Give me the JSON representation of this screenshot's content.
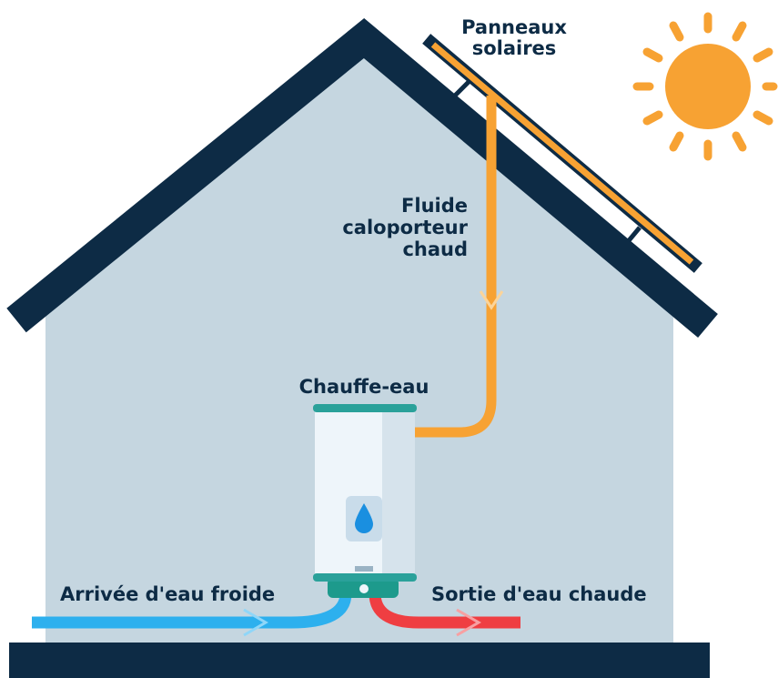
{
  "labels": {
    "panels": [
      "Panneaux",
      "solaires"
    ],
    "fluid": [
      "Fluide",
      "caloporteur",
      "chaud"
    ],
    "heater": "Chauffe-eau",
    "cold_in": "Arrivée d'eau froide",
    "hot_out": "Sortie d'eau chaude"
  }
}
